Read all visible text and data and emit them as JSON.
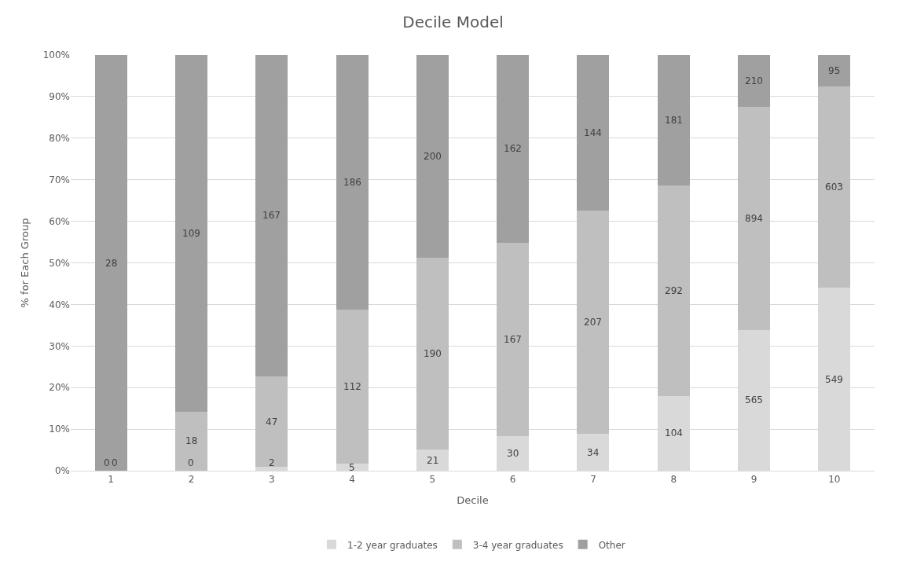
{
  "chart_data": {
    "type": "bar",
    "title": "Decile Model",
    "xlabel": "Decile",
    "ylabel": "% for Each Group",
    "categories": [
      "1",
      "2",
      "3",
      "4",
      "5",
      "6",
      "7",
      "8",
      "9",
      "10"
    ],
    "stacked": true,
    "series": [
      {
        "name": "1-2 year graduates",
        "color": "#d9d9d9",
        "values": [
          0,
          0,
          0.9,
          1.7,
          5.1,
          8.4,
          8.8,
          18.0,
          33.9,
          44.0
        ]
      },
      {
        "name": "3-4 year graduates",
        "color": "#bfbfbf",
        "values": [
          0,
          14.2,
          21.8,
          37.0,
          46.2,
          46.5,
          53.8,
          50.6,
          53.6,
          48.4
        ]
      },
      {
        "name": "Other",
        "color": "#a0a0a0",
        "values": [
          100,
          85.8,
          77.3,
          61.3,
          48.7,
          45.1,
          37.4,
          31.4,
          12.5,
          7.6
        ]
      }
    ],
    "annotations": [
      "0",
      "0",
      "2",
      "5",
      "21",
      "30",
      "34",
      "104",
      "565",
      "549",
      "0",
      "18",
      "47",
      "112",
      "190",
      "167",
      "207",
      "292",
      "894",
      "603",
      "28",
      "109",
      "167",
      "186",
      "200",
      "162",
      "144",
      "181",
      "210",
      "95"
    ],
    "ylim": [
      0,
      100
    ],
    "yticks": [
      {
        "value": 0,
        "label": "0%"
      },
      {
        "value": 10,
        "label": "10%"
      },
      {
        "value": 20,
        "label": "20%"
      },
      {
        "value": 30,
        "label": "30%"
      },
      {
        "value": 40,
        "label": "40%"
      },
      {
        "value": 50,
        "label": "50%"
      },
      {
        "value": 60,
        "label": "60%"
      },
      {
        "value": 70,
        "label": "70%"
      },
      {
        "value": 80,
        "label": "80%"
      },
      {
        "value": 90,
        "label": "90%"
      },
      {
        "value": 100,
        "label": "100%"
      }
    ],
    "grid": "y",
    "legend": "bottom"
  }
}
